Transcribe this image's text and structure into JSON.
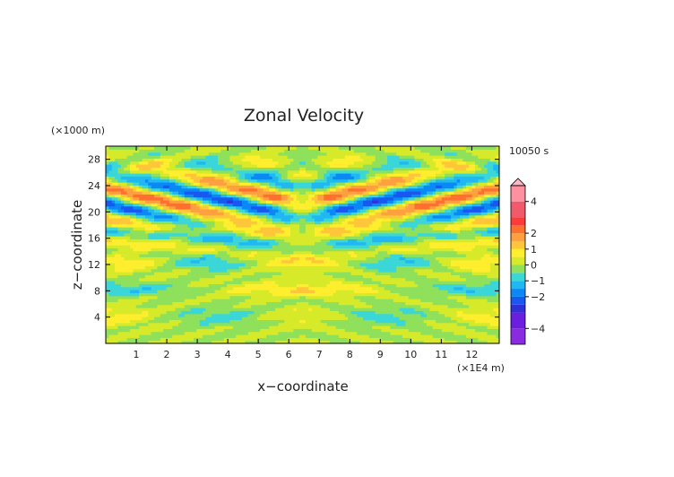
{
  "chart_data": {
    "type": "heatmap",
    "title": "Zonal Velocity",
    "xlabel": "x−coordinate",
    "ylabel": "z−coordinate",
    "x_unit": "(×1E4 m)",
    "y_unit": "(×1000 m)",
    "time_label": "10050 s",
    "xlim": [
      0,
      12.9
    ],
    "ylim": [
      0,
      30
    ],
    "x_ticks": [
      1,
      2,
      3,
      4,
      5,
      6,
      7,
      8,
      9,
      10,
      11,
      12
    ],
    "y_ticks": [
      4,
      8,
      12,
      16,
      20,
      24,
      28
    ],
    "x_tick_labels": [
      "1",
      "2",
      "3",
      "4",
      "5",
      "6",
      "7",
      "8",
      "9",
      "10",
      "11",
      "12"
    ],
    "y_tick_labels": [
      "4",
      "8",
      "12",
      "16",
      "20",
      "24",
      "28"
    ],
    "grid": false,
    "colorbar": {
      "position": "right",
      "levels": [
        -5,
        -4,
        -3,
        -2.5,
        -2,
        -1.5,
        -1,
        -0.5,
        0,
        0.5,
        1,
        1.5,
        2,
        2.5,
        3,
        4,
        5
      ],
      "tick_values": [
        4,
        2,
        1,
        0,
        -1,
        -2,
        -4
      ],
      "tick_labels": [
        "4",
        "2",
        "1",
        "0",
        "−1",
        "−2",
        "−4"
      ],
      "colors": [
        "#8a2be2",
        "#6a1ee0",
        "#3030d8",
        "#1858f0",
        "#0a88f5",
        "#20b8f0",
        "#3ad6d8",
        "#8fe05a",
        "#d6ea2a",
        "#ffee2e",
        "#ffc63a",
        "#ffa040",
        "#ff7030",
        "#ff3a3a",
        "#f05a6a",
        "#ff90a0",
        "#ffb8c4"
      ]
    }
  }
}
